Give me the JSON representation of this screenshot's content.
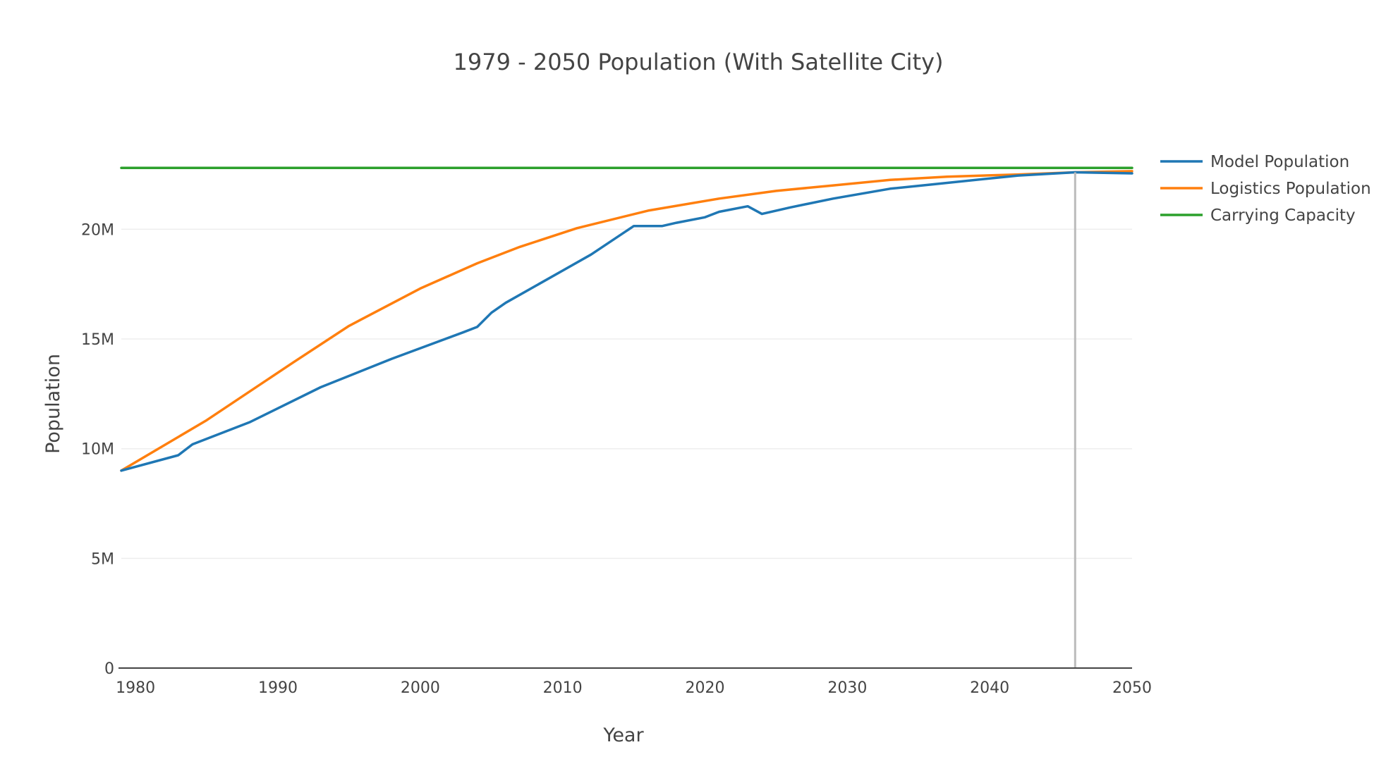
{
  "chart_data": {
    "type": "line",
    "title": "1979 - 2050 Population (With Satellite City)",
    "xlabel": "Year",
    "ylabel": "Population",
    "xlim": [
      1979,
      2050
    ],
    "ylim": [
      0,
      23000000
    ],
    "x_ticks": [
      1980,
      1990,
      2000,
      2010,
      2020,
      2030,
      2040,
      2050
    ],
    "y_ticks": [
      0,
      5000000,
      10000000,
      15000000,
      20000000
    ],
    "y_tick_labels": [
      "0",
      "5M",
      "10M",
      "15M",
      "20M"
    ],
    "grid": "horizontal",
    "legend_position": "top-right",
    "vertical_marker_x": 2046,
    "colors": {
      "model": "#1f77b4",
      "logistics": "#ff7f0e",
      "capacity": "#2ca02c",
      "marker": "#bbbbbb",
      "grid": "#eeeeee",
      "axis": "#444444"
    },
    "series": [
      {
        "name": "Model Population",
        "color": "#1f77b4",
        "points": [
          [
            1979,
            9000000
          ],
          [
            1983,
            9700000
          ],
          [
            1984,
            10200000
          ],
          [
            1988,
            11200000
          ],
          [
            1993,
            12800000
          ],
          [
            1998,
            14100000
          ],
          [
            2003,
            15300000
          ],
          [
            2004,
            15550000
          ],
          [
            2005,
            16200000
          ],
          [
            2006,
            16650000
          ],
          [
            2012,
            18850000
          ],
          [
            2015,
            20150000
          ],
          [
            2017,
            20150000
          ],
          [
            2018,
            20300000
          ],
          [
            2020,
            20550000
          ],
          [
            2021,
            20800000
          ],
          [
            2023,
            21050000
          ],
          [
            2024,
            20700000
          ],
          [
            2026,
            21000000
          ],
          [
            2029,
            21400000
          ],
          [
            2033,
            21850000
          ],
          [
            2036,
            22050000
          ],
          [
            2042,
            22450000
          ],
          [
            2046,
            22600000
          ],
          [
            2050,
            22550000
          ]
        ]
      },
      {
        "name": "Logistics Population",
        "color": "#ff7f0e",
        "points": [
          [
            1979,
            9000000
          ],
          [
            1985,
            11300000
          ],
          [
            1991,
            13900000
          ],
          [
            1995,
            15600000
          ],
          [
            2000,
            17300000
          ],
          [
            2004,
            18450000
          ],
          [
            2007,
            19200000
          ],
          [
            2011,
            20050000
          ],
          [
            2016,
            20850000
          ],
          [
            2021,
            21400000
          ],
          [
            2025,
            21750000
          ],
          [
            2029,
            22000000
          ],
          [
            2033,
            22250000
          ],
          [
            2037,
            22400000
          ],
          [
            2042,
            22500000
          ],
          [
            2046,
            22600000
          ],
          [
            2050,
            22650000
          ]
        ]
      },
      {
        "name": "Carrying Capacity",
        "color": "#2ca02c",
        "points": [
          [
            1979,
            22800000
          ],
          [
            2050,
            22800000
          ]
        ]
      }
    ]
  }
}
